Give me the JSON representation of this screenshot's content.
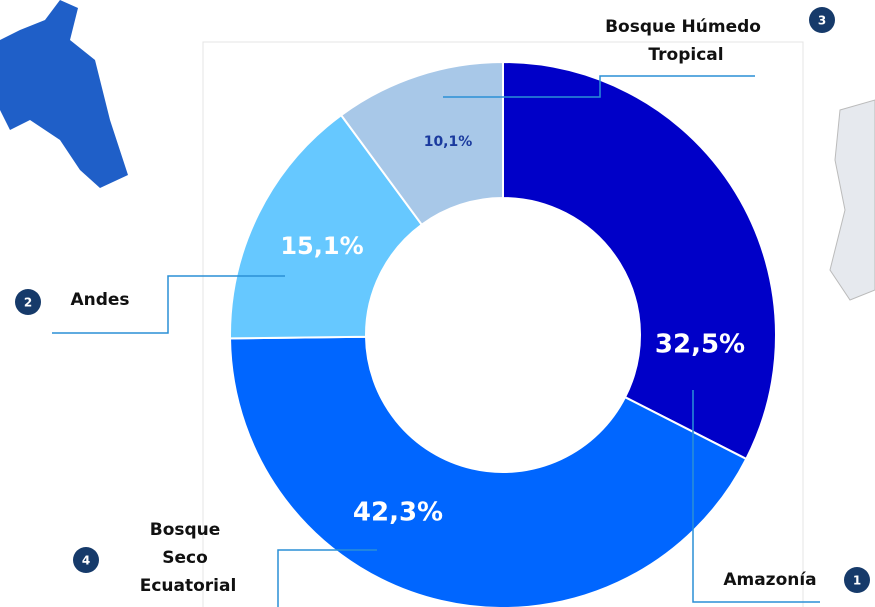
{
  "chart_data": {
    "type": "donut",
    "categories": [
      "Amazonía",
      "Bosque Seco Ecuatorial",
      "Andes",
      "Bosque Húmedo Tropical"
    ],
    "markers": [
      "1",
      "4",
      "2",
      "3"
    ],
    "values": [
      32.5,
      42.3,
      15.1,
      10.1
    ],
    "value_labels": [
      "32,5%",
      "42,3%",
      "15,1%",
      "10,1%"
    ],
    "colors": [
      "#0000c8",
      "#0066ff",
      "#66c8ff",
      "#a8c8e8"
    ]
  }
}
